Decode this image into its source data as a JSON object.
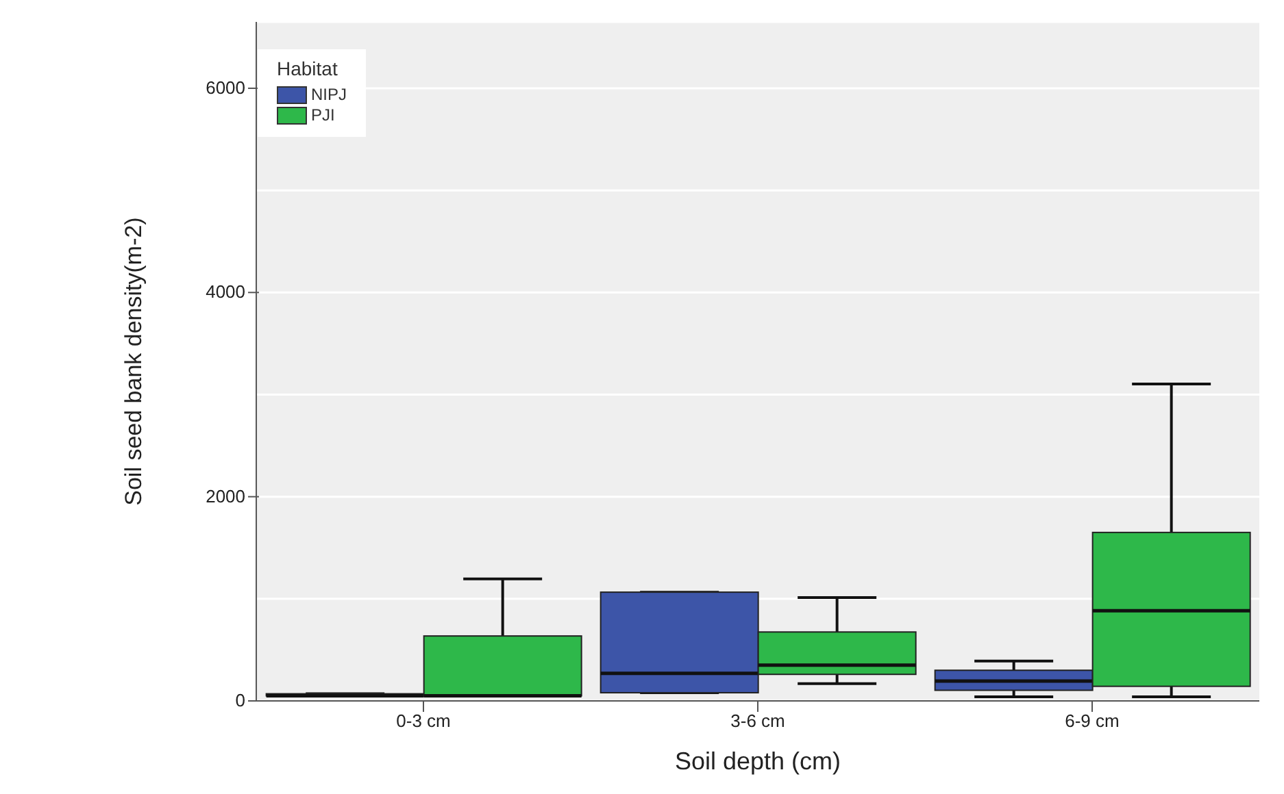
{
  "chart_data": {
    "type": "box",
    "xlabel": "Soil depth (cm)",
    "ylabel": "Soil seed bank density(m-2)",
    "legend_title": "Habitat",
    "legend": "top left",
    "grid": "y",
    "categories": [
      "0-3 cm",
      "3-6 cm",
      "6-9 cm"
    ],
    "ylim": [
      0,
      6650
    ],
    "yticks": [
      0,
      {
        "value": 1000,
        "label": null
      },
      2000,
      {
        "value": 3000,
        "label": null
      },
      4000,
      {
        "value": 5000,
        "label": null
      },
      6000
    ],
    "series": [
      {
        "name": "NIPJ",
        "color": "#3d55a8",
        "boxes": [
          {
            "low": 50,
            "q1": 50,
            "median": 50,
            "q3": 70,
            "high": 70
          },
          {
            "low": 80,
            "q1": 80,
            "median": 270,
            "q3": 1065,
            "high": 1065
          },
          {
            "low": 40,
            "q1": 104,
            "median": 195,
            "q3": 300,
            "high": 390
          }
        ]
      },
      {
        "name": "PJI",
        "color": "#2eb84a",
        "boxes": [
          {
            "low": 50,
            "q1": 50,
            "median": 50,
            "q3": 636,
            "high": 1195
          },
          {
            "low": 170,
            "q1": 260,
            "median": 350,
            "q3": 675,
            "high": 1013
          },
          {
            "low": 40,
            "q1": 143,
            "median": 883,
            "q3": 1650,
            "high": 3104
          }
        ]
      }
    ]
  }
}
